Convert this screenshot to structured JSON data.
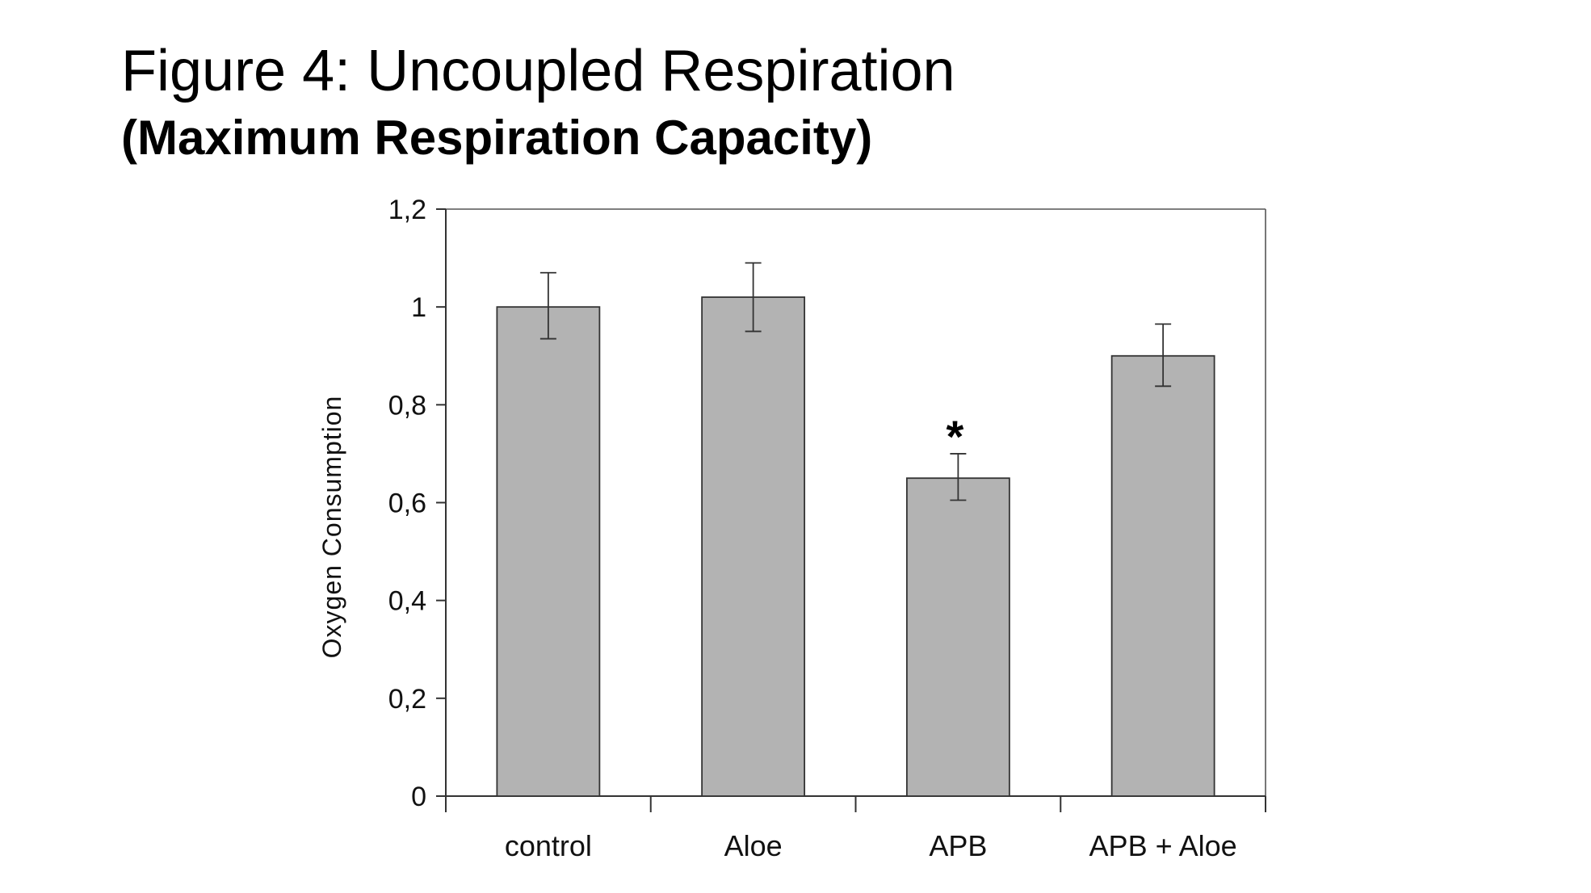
{
  "header": {
    "title": "Figure 4: Uncoupled Respiration",
    "subtitle": "(Maximum Respiration Capacity)"
  },
  "chart_data": {
    "type": "bar",
    "title": "",
    "xlabel": "",
    "ylabel": "Oxygen Consumption",
    "categories": [
      "control",
      "Aloe",
      "APB",
      "APB + Aloe"
    ],
    "values": [
      1.0,
      1.02,
      0.65,
      0.9
    ],
    "error_upper": [
      1.07,
      1.09,
      0.7,
      0.965
    ],
    "error_lower": [
      0.935,
      0.95,
      0.605,
      0.838
    ],
    "annotations": [
      {
        "category": "APB",
        "text": "*"
      }
    ],
    "ylim": [
      0,
      1.2
    ],
    "yticks": [
      0,
      0.2,
      0.4,
      0.6,
      0.8,
      1,
      1.2
    ],
    "ytick_labels": [
      "0",
      "0,2",
      "0,4",
      "0,6",
      "0,8",
      "1",
      "1,2"
    ],
    "grid": false,
    "legend": "none",
    "colors": {
      "bar_fill": "#b3b3b3",
      "bar_stroke": "#333333",
      "axis": "#333333",
      "frame": "#555555"
    }
  }
}
